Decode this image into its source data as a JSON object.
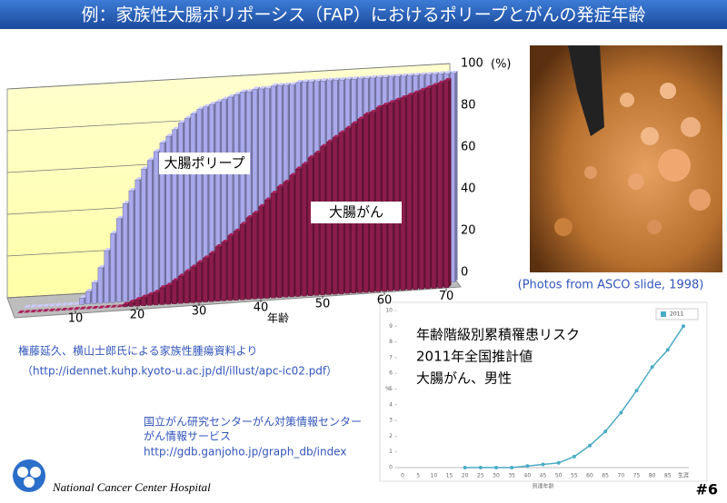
{
  "header": {
    "title": "例：家族性大腸ポリポーシス（FAP）におけるポリープとがんの発症年齢"
  },
  "chart_data": [
    {
      "type": "bar3d",
      "xlabel": "年齢",
      "ylabel": "(%)",
      "x": [
        1,
        2,
        3,
        4,
        5,
        6,
        7,
        8,
        9,
        10,
        11,
        12,
        13,
        14,
        15,
        16,
        17,
        18,
        19,
        20,
        21,
        22,
        23,
        24,
        25,
        26,
        27,
        28,
        29,
        30,
        31,
        32,
        33,
        34,
        35,
        36,
        37,
        38,
        39,
        40,
        41,
        42,
        43,
        44,
        45,
        46,
        47,
        48,
        49,
        50,
        51,
        52,
        53,
        54,
        55,
        56,
        57,
        58,
        59,
        60,
        61,
        62,
        63,
        64,
        65,
        66,
        67,
        68,
        69,
        70
      ],
      "xlim": [
        0,
        70
      ],
      "xticks": [
        10,
        20,
        30,
        40,
        50,
        60,
        70
      ],
      "ylim": [
        0,
        100
      ],
      "yticks": [
        0,
        20,
        40,
        60,
        80,
        100
      ],
      "grid": true,
      "series": [
        {
          "name": "大腸ポリープ",
          "color": "#a9a9ec",
          "values": [
            0,
            0,
            0,
            0,
            0,
            0,
            0,
            0,
            0,
            3,
            6,
            10,
            17,
            25,
            33,
            40,
            47,
            53,
            58,
            63,
            67,
            71,
            75,
            78,
            81,
            84,
            86,
            88,
            90,
            91,
            92,
            93,
            94,
            95,
            96,
            97,
            97,
            98,
            98,
            98,
            99,
            99,
            99,
            99,
            100,
            100,
            100,
            100,
            100,
            100,
            100,
            100,
            100,
            100,
            100,
            100,
            100,
            100,
            100,
            100,
            100,
            100,
            100,
            100,
            100,
            100,
            100,
            100,
            100,
            100
          ]
        },
        {
          "name": "大腸がん",
          "color": "#8c1c4c",
          "values": [
            0,
            0,
            0,
            0,
            0,
            0,
            0,
            0,
            0,
            0,
            0,
            0,
            0,
            0,
            0,
            0,
            0,
            1,
            2,
            3,
            4,
            5,
            6,
            8,
            9,
            11,
            13,
            15,
            17,
            19,
            21,
            23,
            26,
            28,
            31,
            33,
            36,
            39,
            41,
            44,
            47,
            50,
            53,
            55,
            58,
            61,
            63,
            66,
            68,
            71,
            73,
            75,
            77,
            79,
            81,
            83,
            85,
            86,
            88,
            89,
            90,
            91,
            92,
            93,
            94,
            95,
            96,
            97,
            98,
            99
          ]
        }
      ]
    },
    {
      "type": "line",
      "annotations": [
        "年齢階級別累積罹患リスク",
        "2011年全国推計値",
        "大腸がん、男性"
      ],
      "xlabel": "到達年齢",
      "ylabel": "%",
      "categories": [
        "0",
        "5",
        "10",
        "15",
        "20",
        "25",
        "30",
        "35",
        "40",
        "45",
        "50",
        "55",
        "60",
        "65",
        "70",
        "75",
        "80",
        "85",
        "生涯"
      ],
      "ylim": [
        0,
        10
      ],
      "yticks": [
        0,
        1,
        2,
        3,
        4,
        5,
        6,
        7,
        8,
        9,
        10
      ],
      "grid": false,
      "series": [
        {
          "name": "2011",
          "color": "#4bacc6",
          "values": [
            null,
            null,
            null,
            null,
            0,
            0,
            0,
            0,
            0.1,
            0.2,
            0.3,
            0.7,
            1.4,
            2.3,
            3.5,
            4.9,
            6.4,
            7.5,
            9.0
          ]
        }
      ]
    }
  ],
  "photo_caption": "(Photos from ASCO slide, 1998)",
  "sources": [
    "権藤延久、横山士郎氏による家族性腫瘍資料より",
    "（http://idennet.kuhp.kyoto-u.ac.jp/dl/illust/apc-ic02.pdf）"
  ],
  "service": [
    "国立がん研究センターがん対策情報センター",
    "がん情報サービス",
    "http://gdb.ganjoho.jp/graph_db/index"
  ],
  "footer": {
    "organization": "National Cancer Center Hospital",
    "page": "#6"
  }
}
